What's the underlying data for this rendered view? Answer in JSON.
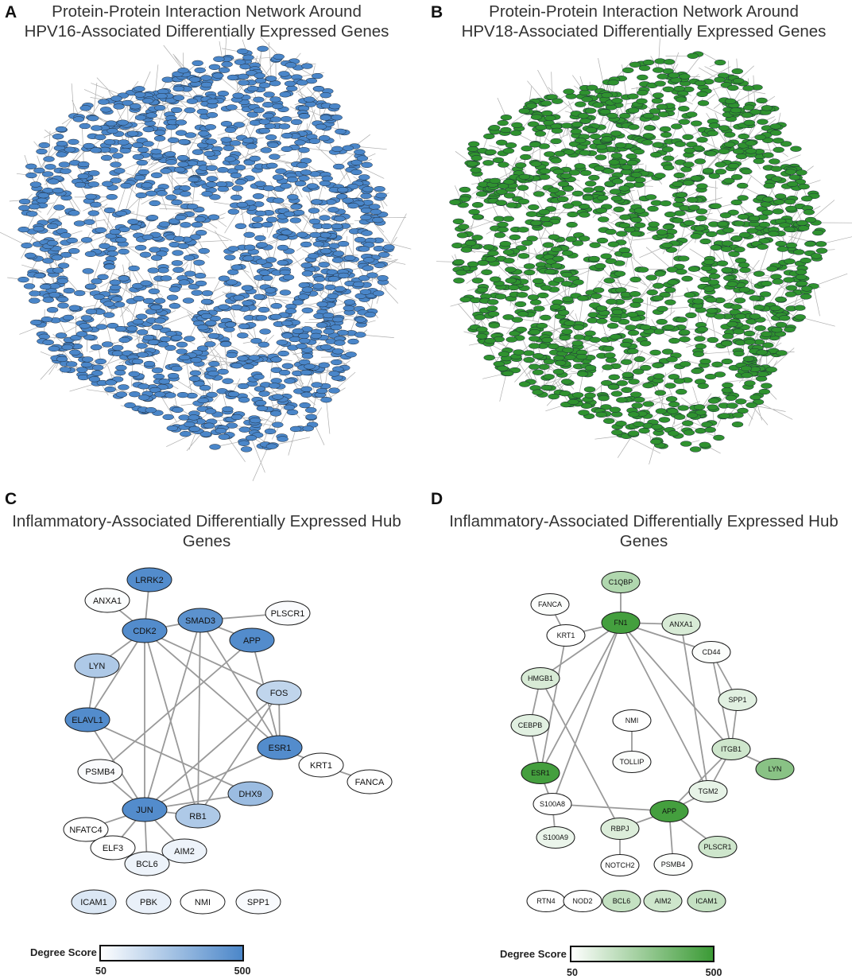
{
  "panels": {
    "A": {
      "letter": "A",
      "title_line1": "Protein-Protein Interaction Network Around",
      "title_line2": "HPV16-Associated Differentially Expressed Genes",
      "node_color": "#4a86c9",
      "edge_color": "#9a9a9a"
    },
    "B": {
      "letter": "B",
      "title_line1": "Protein-Protein Interaction Network Around",
      "title_line2": "HPV18-Associated Differentially Expressed Genes",
      "node_color": "#2f922f",
      "edge_color": "#9a9a9a"
    },
    "C": {
      "letter": "C",
      "title_line1": "Inflammatory-Associated Differentially Expressed Hub",
      "title_line2": "Genes"
    },
    "D": {
      "letter": "D",
      "title_line1": "Inflammatory-Associated Differentially Expressed Hub",
      "title_line2": "Genes"
    }
  },
  "legend_c": {
    "title": "Degree Score",
    "min": "50",
    "max": "500",
    "color_low": "#ffffff",
    "color_high": "#4a86c9"
  },
  "legend_d": {
    "title": "Degree Score",
    "min": "50",
    "max": "500",
    "color_low": "#ffffff",
    "color_high": "#3a9a34"
  },
  "network_c": {
    "nodes": [
      {
        "label": "LRRK2",
        "level": 0.95
      },
      {
        "label": "ANXA1",
        "level": 0.02
      },
      {
        "label": "CDK2",
        "level": 0.95
      },
      {
        "label": "SMAD3",
        "level": 0.9
      },
      {
        "label": "PLSCR1",
        "level": 0.03
      },
      {
        "label": "APP",
        "level": 0.95
      },
      {
        "label": "LYN",
        "level": 0.45
      },
      {
        "label": "FOS",
        "level": 0.35
      },
      {
        "label": "ELAVL1",
        "level": 0.95
      },
      {
        "label": "ESR1",
        "level": 0.95
      },
      {
        "label": "KRT1",
        "level": 0.0
      },
      {
        "label": "FANCA",
        "level": 0.0
      },
      {
        "label": "PSMB4",
        "level": 0.03
      },
      {
        "label": "DHX9",
        "level": 0.55
      },
      {
        "label": "JUN",
        "level": 0.95
      },
      {
        "label": "RB1",
        "level": 0.45
      },
      {
        "label": "NFATC4",
        "level": 0.0
      },
      {
        "label": "ELF3",
        "level": 0.0
      },
      {
        "label": "AIM2",
        "level": 0.1
      },
      {
        "label": "BCL6",
        "level": 0.1
      },
      {
        "label": "ICAM1",
        "level": 0.2
      },
      {
        "label": "PBK",
        "level": 0.12
      },
      {
        "label": "NMI",
        "level": 0.0
      },
      {
        "label": "SPP1",
        "level": 0.04
      }
    ],
    "edges": [
      [
        "LRRK2",
        "CDK2"
      ],
      [
        "ANXA1",
        "CDK2"
      ],
      [
        "CDK2",
        "SMAD3"
      ],
      [
        "SMAD3",
        "PLSCR1"
      ],
      [
        "SMAD3",
        "APP"
      ],
      [
        "CDK2",
        "LYN"
      ],
      [
        "CDK2",
        "ELAVL1"
      ],
      [
        "LYN",
        "ELAVL1"
      ],
      [
        "CDK2",
        "FOS"
      ],
      [
        "CDK2",
        "ESR1"
      ],
      [
        "CDK2",
        "RB1"
      ],
      [
        "CDK2",
        "JUN"
      ],
      [
        "SMAD3",
        "JUN"
      ],
      [
        "SMAD3",
        "RB1"
      ],
      [
        "SMAD3",
        "ESR1"
      ],
      [
        "APP",
        "ESR1"
      ],
      [
        "APP",
        "PSMB4"
      ],
      [
        "ELAVL1",
        "JUN"
      ],
      [
        "ELAVL1",
        "DHX9"
      ],
      [
        "FOS",
        "JUN"
      ],
      [
        "FOS",
        "RB1"
      ],
      [
        "FOS",
        "ESR1"
      ],
      [
        "ESR1",
        "JUN"
      ],
      [
        "ESR1",
        "KRT1"
      ],
      [
        "KRT1",
        "FANCA"
      ],
      [
        "PSMB4",
        "JUN"
      ],
      [
        "DHX9",
        "JUN"
      ],
      [
        "RB1",
        "JUN"
      ],
      [
        "JUN",
        "NFATC4"
      ],
      [
        "JUN",
        "ELF3"
      ],
      [
        "JUN",
        "AIM2"
      ],
      [
        "JUN",
        "BCL6"
      ]
    ]
  },
  "network_d": {
    "nodes": [
      {
        "label": "C1QBP",
        "level": 0.4
      },
      {
        "label": "FANCA",
        "level": 0.02
      },
      {
        "label": "FN1",
        "level": 0.95
      },
      {
        "label": "ANXA1",
        "level": 0.2
      },
      {
        "label": "KRT1",
        "level": 0.0
      },
      {
        "label": "CD44",
        "level": 0.02
      },
      {
        "label": "HMGB1",
        "level": 0.2
      },
      {
        "label": "SPP1",
        "level": 0.15
      },
      {
        "label": "NMI",
        "level": 0.0
      },
      {
        "label": "CEBPB",
        "level": 0.15
      },
      {
        "label": "ITGB1",
        "level": 0.25
      },
      {
        "label": "LYN",
        "level": 0.6
      },
      {
        "label": "TOLLIP",
        "level": 0.02
      },
      {
        "label": "ESR1",
        "level": 0.95
      },
      {
        "label": "TGM2",
        "level": 0.12
      },
      {
        "label": "S100A8",
        "level": 0.0
      },
      {
        "label": "APP",
        "level": 0.95
      },
      {
        "label": "RBPJ",
        "level": 0.18
      },
      {
        "label": "S100A9",
        "level": 0.1
      },
      {
        "label": "PLSCR1",
        "level": 0.25
      },
      {
        "label": "NOTCH2",
        "level": 0.0
      },
      {
        "label": "PSMB4",
        "level": 0.02
      },
      {
        "label": "RTN4",
        "level": 0.0
      },
      {
        "label": "NOD2",
        "level": 0.0
      },
      {
        "label": "BCL6",
        "level": 0.3
      },
      {
        "label": "AIM2",
        "level": 0.25
      },
      {
        "label": "ICAM1",
        "level": 0.3
      }
    ],
    "edges": [
      [
        "C1QBP",
        "FN1"
      ],
      [
        "FN1",
        "ANXA1"
      ],
      [
        "FN1",
        "KRT1"
      ],
      [
        "FN1",
        "CD44"
      ],
      [
        "FN1",
        "HMGB1"
      ],
      [
        "FN1",
        "ESR1"
      ],
      [
        "FN1",
        "ITGB1"
      ],
      [
        "FN1",
        "TGM2"
      ],
      [
        "FN1",
        "S100A8"
      ],
      [
        "FANCA",
        "KRT1"
      ],
      [
        "KRT1",
        "ESR1"
      ],
      [
        "ANXA1",
        "TGM2"
      ],
      [
        "CD44",
        "SPP1"
      ],
      [
        "CD44",
        "ITGB1"
      ],
      [
        "SPP1",
        "ITGB1"
      ],
      [
        "ITGB1",
        "LYN"
      ],
      [
        "ITGB1",
        "TGM2"
      ],
      [
        "ITGB1",
        "APP"
      ],
      [
        "TGM2",
        "APP"
      ],
      [
        "HMGB1",
        "CEBPB"
      ],
      [
        "HMGB1",
        "RBPJ"
      ],
      [
        "CEBPB",
        "ESR1"
      ],
      [
        "ESR1",
        "S100A8"
      ],
      [
        "S100A8",
        "APP"
      ],
      [
        "S100A8",
        "S100A9"
      ],
      [
        "APP",
        "RBPJ"
      ],
      [
        "APP",
        "PSMB4"
      ],
      [
        "APP",
        "PLSCR1"
      ],
      [
        "RBPJ",
        "NOTCH2"
      ],
      [
        "NMI",
        "TOLLIP"
      ]
    ]
  }
}
